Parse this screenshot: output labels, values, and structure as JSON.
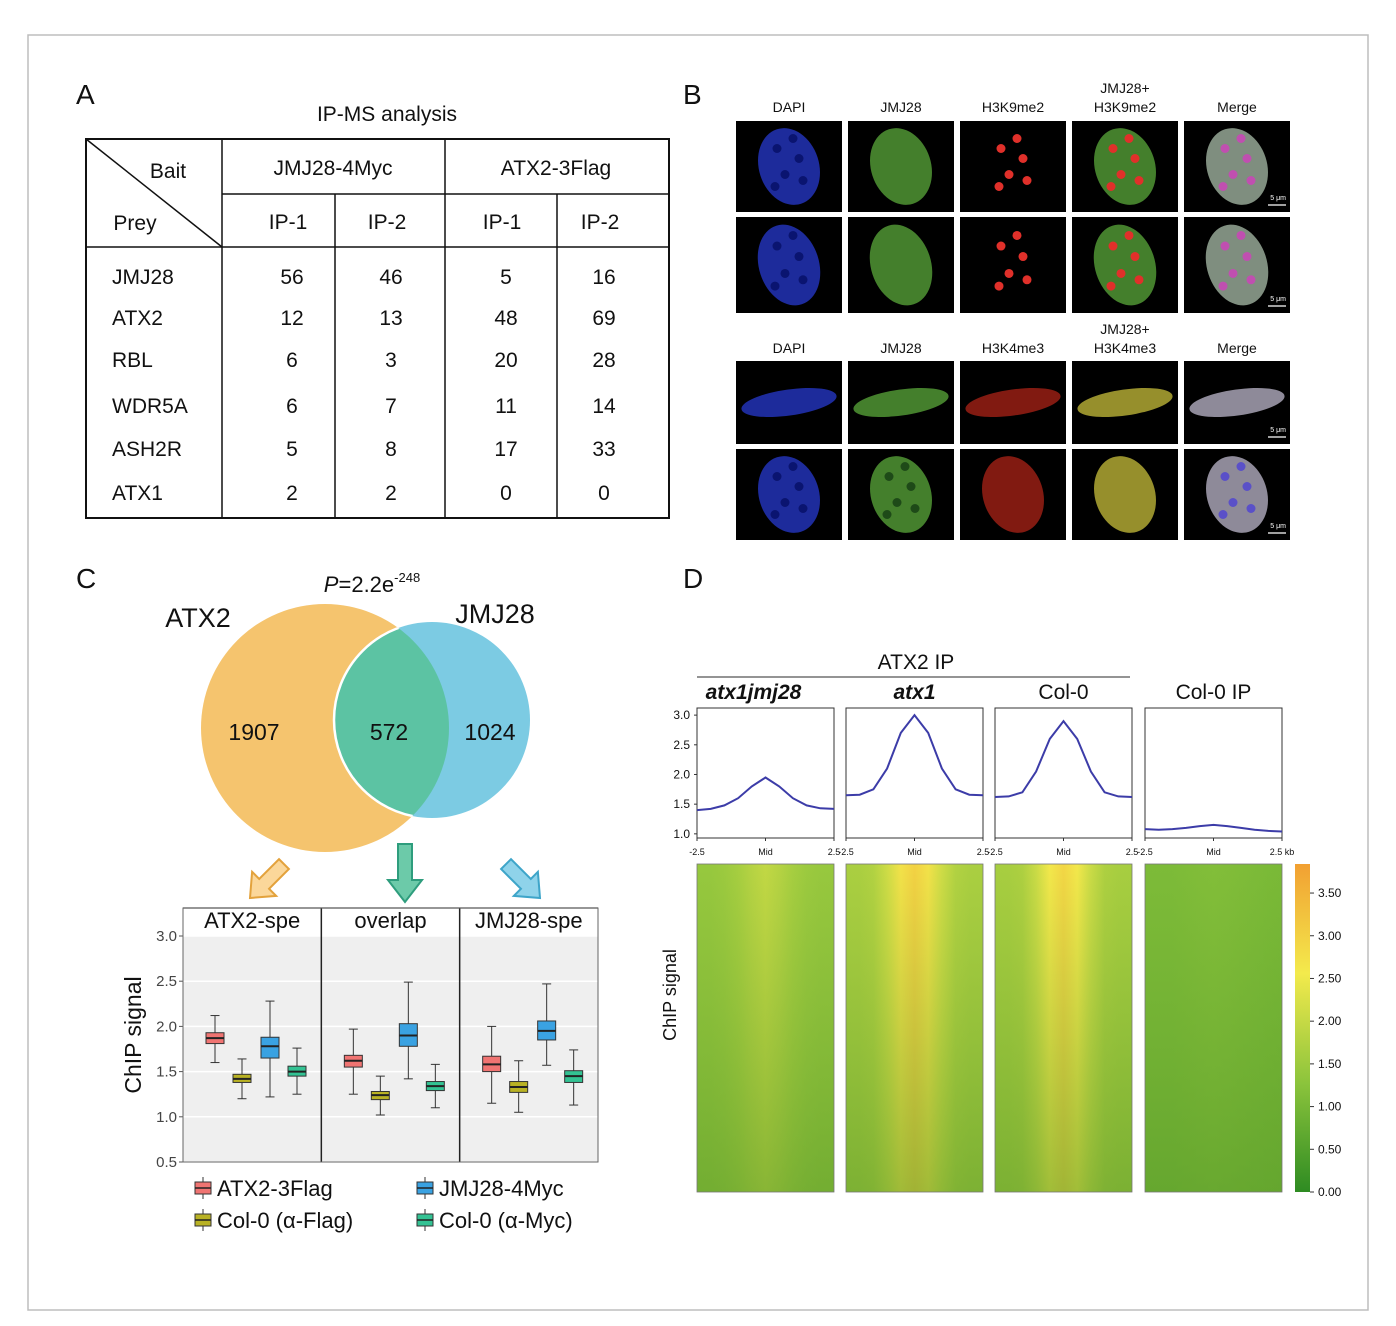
{
  "panel_labels": [
    "A",
    "B",
    "C",
    "D"
  ],
  "table": {
    "title": "IP-MS analysis",
    "bait_label": "Bait",
    "prey_label": "Prey",
    "groups": [
      {
        "name": "JMJ28-4Myc",
        "columns": [
          "IP-1",
          "IP-2"
        ]
      },
      {
        "name": "ATX2-3Flag",
        "columns": [
          "IP-1",
          "IP-2"
        ]
      }
    ],
    "rows": [
      {
        "prey": "JMJ28",
        "values": [
          56,
          46,
          5,
          16
        ]
      },
      {
        "prey": "ATX2",
        "values": [
          12,
          13,
          48,
          69
        ]
      },
      {
        "prey": "RBL",
        "values": [
          6,
          3,
          20,
          28
        ]
      },
      {
        "prey": "WDR5A",
        "values": [
          6,
          7,
          11,
          14
        ]
      },
      {
        "prey": "ASH2R",
        "values": [
          5,
          8,
          17,
          33
        ]
      },
      {
        "prey": "ATX1",
        "values": [
          2,
          2,
          0,
          0
        ]
      }
    ]
  },
  "microscopy": {
    "scale_label": "5 μm",
    "blocks": [
      {
        "headers": [
          [
            "DAPI"
          ],
          [
            "JMJ28"
          ],
          [
            "H3K9me2"
          ],
          [
            "JMJ28+",
            "H3K9me2"
          ],
          [
            "Merge"
          ]
        ]
      },
      {
        "headers": [
          [
            "DAPI"
          ],
          [
            "JMJ28"
          ],
          [
            "H3K4me3"
          ],
          [
            "JMJ28+",
            "H3K4me3"
          ],
          [
            "Merge"
          ]
        ]
      }
    ]
  },
  "venn": {
    "p_symbol": "P",
    "p_value": "=2.2e",
    "p_exponent": "-248",
    "sets": [
      {
        "name": "ATX2",
        "count": 1907,
        "color": "#f5c46e"
      },
      {
        "name": "JMJ28",
        "count": 1024,
        "color": "#7ccbe3"
      }
    ],
    "overlap": {
      "count": 572,
      "color": "#5cc3a3"
    }
  },
  "chart_data": [
    {
      "type": "box",
      "categories": [
        "ATX2-spe",
        "overlap",
        "JMJ28-spe"
      ],
      "ylabel": "ChIP signal",
      "ylim": [
        0.5,
        3.0
      ],
      "yticks": [
        0.5,
        {
          "value": 1,
          "label": "1.0"
        },
        1.5,
        {
          "value": 2,
          "label": "2.0"
        },
        2.5,
        {
          "value": 3,
          "label": "3.0"
        }
      ],
      "grid": true,
      "series": [
        {
          "name": "ATX2-3Flag",
          "color": "#f07472",
          "boxes": [
            {
              "min": 1.6,
              "q1": 1.81,
              "median": 1.87,
              "q3": 1.93,
              "max": 2.12
            },
            {
              "min": 1.25,
              "q1": 1.55,
              "median": 1.62,
              "q3": 1.68,
              "max": 1.97
            },
            {
              "min": 1.15,
              "q1": 1.5,
              "median": 1.58,
              "q3": 1.67,
              "max": 2.0
            }
          ]
        },
        {
          "name": "Col-0 (α-Flag)",
          "color": "#b9b224",
          "boxes": [
            {
              "min": 1.2,
              "q1": 1.38,
              "median": 1.42,
              "q3": 1.47,
              "max": 1.64
            },
            {
              "min": 1.02,
              "q1": 1.19,
              "median": 1.24,
              "q3": 1.28,
              "max": 1.45
            },
            {
              "min": 1.05,
              "q1": 1.27,
              "median": 1.33,
              "q3": 1.39,
              "max": 1.62
            }
          ]
        },
        {
          "name": "JMJ28-4Myc",
          "color": "#3aa2e2",
          "boxes": [
            {
              "min": 1.22,
              "q1": 1.65,
              "median": 1.78,
              "q3": 1.88,
              "max": 2.28
            },
            {
              "min": 1.42,
              "q1": 1.78,
              "median": 1.9,
              "q3": 2.03,
              "max": 2.49
            },
            {
              "min": 1.57,
              "q1": 1.85,
              "median": 1.95,
              "q3": 2.06,
              "max": 2.47
            }
          ]
        },
        {
          "name": "Col-0 (α-Myc)",
          "color": "#33c293",
          "boxes": [
            {
              "min": 1.25,
              "q1": 1.45,
              "median": 1.5,
              "q3": 1.56,
              "max": 1.76
            },
            {
              "min": 1.1,
              "q1": 1.29,
              "median": 1.34,
              "q3": 1.39,
              "max": 1.58
            },
            {
              "min": 1.13,
              "q1": 1.38,
              "median": 1.45,
              "q3": 1.51,
              "max": 1.74
            }
          ]
        }
      ]
    },
    {
      "type": "line",
      "group_title": "ATX2 IP",
      "ylabel": "ChIP signal",
      "color": "#3c3ca8",
      "xlim": [
        -2.5,
        2.5
      ],
      "ylim": [
        0.93,
        3.12
      ],
      "yticks": [
        {
          "value": 1,
          "label": "1.0"
        },
        1.5,
        {
          "value": 2,
          "label": "2.0"
        },
        2.5,
        {
          "value": 3,
          "label": "3.0"
        }
      ],
      "x": [
        -2.5,
        -2,
        -1.5,
        -1,
        -0.5,
        0,
        0.5,
        1,
        1.5,
        2,
        2.5
      ],
      "series": [
        {
          "name": "atx1jmj28",
          "italic": true,
          "values": [
            1.4,
            1.42,
            1.48,
            1.6,
            1.8,
            1.95,
            1.8,
            1.6,
            1.48,
            1.43,
            1.42
          ],
          "xticks": [
            -2.5,
            {
              "value": 0,
              "label": "Mid"
            },
            2.5
          ]
        },
        {
          "name": "atx1",
          "italic": true,
          "values": [
            1.65,
            1.66,
            1.75,
            2.1,
            2.7,
            3.0,
            2.7,
            2.1,
            1.75,
            1.66,
            1.65
          ],
          "xticks": [
            -2.5,
            {
              "value": 0,
              "label": "Mid"
            },
            2.5
          ]
        },
        {
          "name": "Col-0",
          "italic": false,
          "values": [
            1.62,
            1.63,
            1.7,
            2.05,
            2.6,
            2.9,
            2.6,
            2.05,
            1.7,
            1.63,
            1.62
          ],
          "xticks": [
            -2.5,
            {
              "value": 0,
              "label": "Mid"
            },
            2.5
          ]
        },
        {
          "name": "Col-0 IP",
          "italic": false,
          "values": [
            1.08,
            1.07,
            1.08,
            1.1,
            1.13,
            1.15,
            1.13,
            1.1,
            1.07,
            1.05,
            1.04
          ],
          "xticks": [
            -2.5,
            {
              "value": 0,
              "label": "Mid"
            },
            {
              "value": 2.5,
              "label": "2.5 kb"
            }
          ]
        }
      ],
      "heatmap": {
        "clim": [
          0,
          3.84
        ],
        "colormap": [
          "#2e8b22",
          "#8cc43c",
          "#f3ea4c",
          "#f2a032"
        ],
        "cticks": [
          {
            "value": 0,
            "label": "0.00"
          },
          {
            "value": 0.5,
            "label": "0.50"
          },
          {
            "value": 1,
            "label": "1.00"
          },
          {
            "value": 1.5,
            "label": "1.50"
          },
          {
            "value": 2,
            "label": "2.00"
          },
          {
            "value": 2.5,
            "label": "2.50"
          },
          {
            "value": 3,
            "label": "3.00"
          },
          {
            "value": 3.5,
            "label": "3.50"
          }
        ]
      }
    }
  ]
}
